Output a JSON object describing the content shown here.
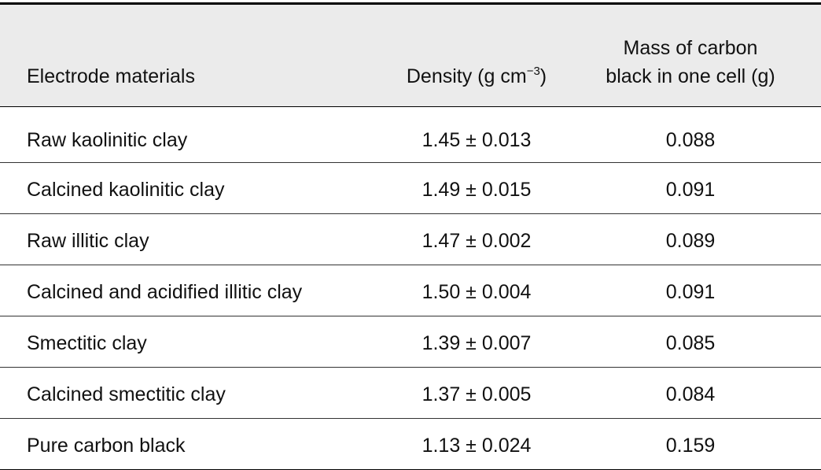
{
  "table": {
    "header": [
      {
        "text": "Electrode materials"
      },
      {
        "parts": [
          "Density (g cm",
          "−3",
          ")"
        ]
      },
      {
        "lines": [
          "Mass of carbon",
          "black in one cell (g)"
        ]
      }
    ],
    "rows": [
      [
        "Raw kaolinitic clay",
        "1.45 ± 0.013",
        "0.088"
      ],
      [
        "Calcined kaolinitic clay",
        "1.49 ± 0.015",
        "0.091"
      ],
      [
        "Raw illitic clay",
        "1.47 ± 0.002",
        "0.089"
      ],
      [
        "Calcined and acidified illitic clay",
        "1.50 ± 0.004",
        "0.091"
      ],
      [
        "Smectitic clay",
        "1.39 ± 0.007",
        "0.085"
      ],
      [
        "Calcined smectitic clay",
        "1.37 ± 0.005",
        "0.084"
      ],
      [
        "Pure carbon black",
        "1.13 ± 0.024",
        "0.159"
      ]
    ]
  }
}
